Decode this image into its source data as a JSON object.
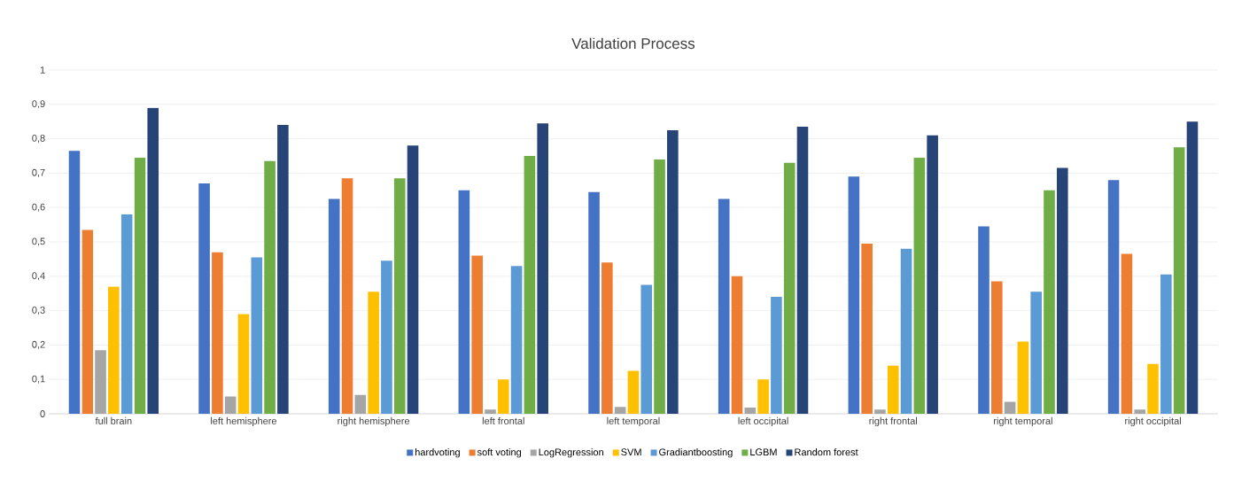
{
  "chart_data": {
    "type": "bar",
    "title": "Validation Process",
    "categories": [
      "full brain",
      "left hemisphere",
      "right hemisphere",
      "left frontal",
      "left temporal",
      "left occipital",
      "right frontal",
      "right temporal",
      "right occipital"
    ],
    "series": [
      {
        "name": "hardvoting",
        "color": "#4472c4",
        "values": [
          0.765,
          0.67,
          0.625,
          0.65,
          0.645,
          0.625,
          0.69,
          0.545,
          0.68
        ]
      },
      {
        "name": "soft voting",
        "color": "#ed7d31",
        "values": [
          0.535,
          0.47,
          0.685,
          0.46,
          0.44,
          0.4,
          0.495,
          0.385,
          0.465
        ]
      },
      {
        "name": "LogRegression",
        "color": "#a5a5a5",
        "values": [
          0.185,
          0.05,
          0.055,
          0.012,
          0.02,
          0.018,
          0.012,
          0.035,
          0.012
        ]
      },
      {
        "name": "SVM",
        "color": "#ffc000",
        "values": [
          0.37,
          0.29,
          0.355,
          0.1,
          0.125,
          0.1,
          0.14,
          0.21,
          0.145
        ]
      },
      {
        "name": "Gradiantboosting",
        "color": "#5b9bd5",
        "values": [
          0.58,
          0.455,
          0.445,
          0.43,
          0.375,
          0.34,
          0.48,
          0.355,
          0.405
        ]
      },
      {
        "name": "LGBM",
        "color": "#70ad47",
        "values": [
          0.745,
          0.735,
          0.685,
          0.75,
          0.74,
          0.73,
          0.745,
          0.65,
          0.775
        ]
      },
      {
        "name": "Random forest",
        "color": "#264478",
        "values": [
          0.89,
          0.84,
          0.78,
          0.845,
          0.825,
          0.835,
          0.81,
          0.715,
          0.85
        ]
      }
    ],
    "ylim": [
      0,
      1
    ],
    "yticks": [
      0,
      {
        "value": 0.1,
        "label": "0,1"
      },
      {
        "value": 0.2,
        "label": "0,2"
      },
      {
        "value": 0.3,
        "label": "0,3"
      },
      {
        "value": 0.4,
        "label": "0,4"
      },
      {
        "value": 0.5,
        "label": "0,5"
      },
      {
        "value": 0.6,
        "label": "0,6"
      },
      {
        "value": 0.7,
        "label": "0,7"
      },
      {
        "value": 0.8,
        "label": "0,8"
      },
      {
        "value": 0.9,
        "label": "0,9"
      },
      1
    ],
    "grid": "y",
    "legend": "bottom"
  }
}
